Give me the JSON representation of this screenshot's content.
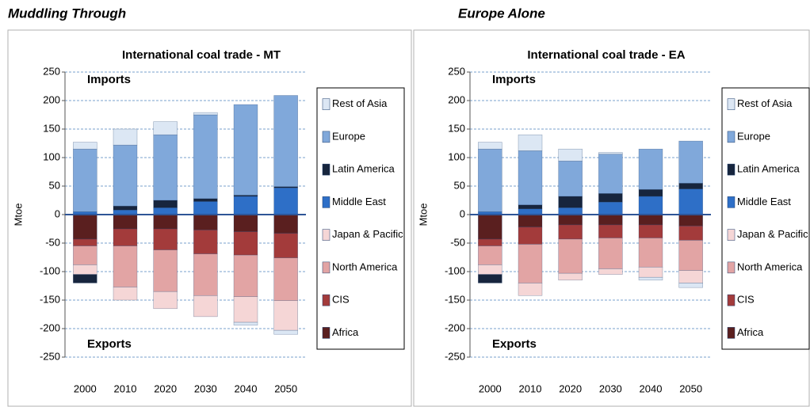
{
  "chart_data": [
    {
      "type": "bar",
      "stacked": true,
      "panel_title": "Muddling Through",
      "title": "International coal trade - MT",
      "y_label": "Mtoe",
      "annotations": [
        "Imports",
        "Exports"
      ],
      "categories": [
        "2000",
        "2010",
        "2020",
        "2030",
        "2040",
        "2050"
      ],
      "ylim": [
        -250,
        250
      ],
      "yticks": [
        -250,
        -200,
        -150,
        -100,
        -50,
        0,
        50,
        100,
        150,
        200,
        250
      ],
      "grid": true,
      "legend": "right",
      "series": [
        {
          "name": "Africa",
          "color": "#5a1f1f",
          "values": [
            -43,
            -25,
            -25,
            -27,
            -30,
            -33
          ]
        },
        {
          "name": "CIS",
          "color": "#a33b3b",
          "values": [
            -12,
            -30,
            -37,
            -42,
            -41,
            -43
          ]
        },
        {
          "name": "North America",
          "color": "#e2a4a4",
          "values": [
            -33,
            -72,
            -73,
            -73,
            -73,
            -75
          ]
        },
        {
          "name": "Japan & Pacific",
          "color": "#f5d6d6",
          "values": [
            -17,
            -23,
            -30,
            -37,
            -45,
            -52
          ]
        },
        {
          "name": "Middle East",
          "color": "#2e6fc7",
          "values": [
            5,
            8,
            12,
            23,
            32,
            47
          ]
        },
        {
          "name": "Latin America",
          "color": "#17253d",
          "values": [
            -15,
            7,
            13,
            5,
            2,
            2
          ]
        },
        {
          "name": "Europe",
          "color": "#80a8da",
          "values": [
            110,
            107,
            115,
            147,
            159,
            160
          ]
        },
        {
          "name": "Rest of Asia",
          "color": "#dce7f4",
          "values": [
            12,
            28,
            23,
            4,
            -5,
            -7
          ]
        }
      ]
    },
    {
      "type": "bar",
      "stacked": true,
      "panel_title": "Europe Alone",
      "title": "International coal trade - EA",
      "y_label": "Mtoe",
      "annotations": [
        "Imports",
        "Exports"
      ],
      "categories": [
        "2000",
        "2010",
        "2020",
        "2030",
        "2040",
        "2050"
      ],
      "ylim": [
        -250,
        250
      ],
      "yticks": [
        -250,
        -200,
        -150,
        -100,
        -50,
        0,
        50,
        100,
        150,
        200,
        250
      ],
      "grid": true,
      "legend": "right",
      "series": [
        {
          "name": "Africa",
          "color": "#5a1f1f",
          "values": [
            -43,
            -22,
            -18,
            -18,
            -18,
            -20
          ]
        },
        {
          "name": "CIS",
          "color": "#a33b3b",
          "values": [
            -12,
            -30,
            -25,
            -23,
            -23,
            -25
          ]
        },
        {
          "name": "North America",
          "color": "#e2a4a4",
          "values": [
            -33,
            -68,
            -60,
            -54,
            -51,
            -53
          ]
        },
        {
          "name": "Japan & Pacific",
          "color": "#f5d6d6",
          "values": [
            -17,
            -22,
            -12,
            -10,
            -18,
            -22
          ]
        },
        {
          "name": "Middle East",
          "color": "#2e6fc7",
          "values": [
            5,
            10,
            12,
            22,
            32,
            45
          ]
        },
        {
          "name": "Latin America",
          "color": "#17253d",
          "values": [
            -15,
            7,
            20,
            15,
            12,
            10
          ]
        },
        {
          "name": "Europe",
          "color": "#80a8da",
          "values": [
            110,
            95,
            62,
            69,
            71,
            74
          ]
        },
        {
          "name": "Rest of Asia",
          "color": "#dce7f4",
          "values": [
            12,
            28,
            21,
            3,
            -5,
            -8
          ]
        }
      ]
    }
  ]
}
